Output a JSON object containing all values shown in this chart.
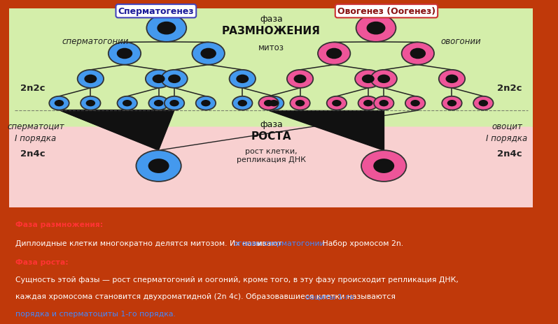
{
  "bg_color": "#c0390a",
  "diagram_bg": "#f8f8f8",
  "green_bg": "#d4eeaa",
  "pink_bg": "#f8d0d0",
  "blue_outer": "#4499ee",
  "blue_inner": "#111111",
  "pink_outer": "#ee5599",
  "pink_inner": "#111111",
  "line_color": "#222222",
  "title_sperm": "Сперматогенез",
  "title_ovo": "Овогенез (Оогенез)",
  "phase1_line1": "фаза",
  "phase1_line2": "РАЗМНОЖЕНИЯ",
  "phase1_sub": "митоз",
  "phase2_line1": "фаза",
  "phase2_line2": "РОСТА",
  "phase2_sub": "рост клетки,\nрепликация ДНК",
  "label_sperm_top": "сперматогонии",
  "label_sperm_bot1": "сперматоцит",
  "label_sperm_bot2": "I порядка",
  "label_sperm_set_top": "2n2c",
  "label_sperm_set_bot": "2n4c",
  "label_ovo_top": "овогонии",
  "label_ovo_bot1": "овоцит",
  "label_ovo_bot2": "I порядка",
  "label_ovo_set_top": "2n2c",
  "label_ovo_set_bot": "2n4c",
  "text_bg": "#1e1e2a",
  "orange_bg": "#c85800",
  "t1_title": "Фаза размножения:",
  "t1_body_white": "Диплоидные клетки многократно делятся митозом. Их называют ",
  "t1_ogonii": "огонии",
  "t1_and": " и ",
  "t1_sperm": "сперматогонии.",
  "t1_rest": " Набор хромосом 2n.",
  "t2_title": "Фаза роста:",
  "t2_body1": "Сущность этой фазы — рост сперматогоний и оогоний, кроме того, в эту фазу происходит репликация ДНК,",
  "t2_body2_white": "каждая хромосома становится двухроматидной (2n 4c). Образовавшиеся клетки называются ",
  "t2_body2_blue": "ооциты 1-го",
  "t2_body3_blue": "порядка и сперматоциты 1-го порядка."
}
